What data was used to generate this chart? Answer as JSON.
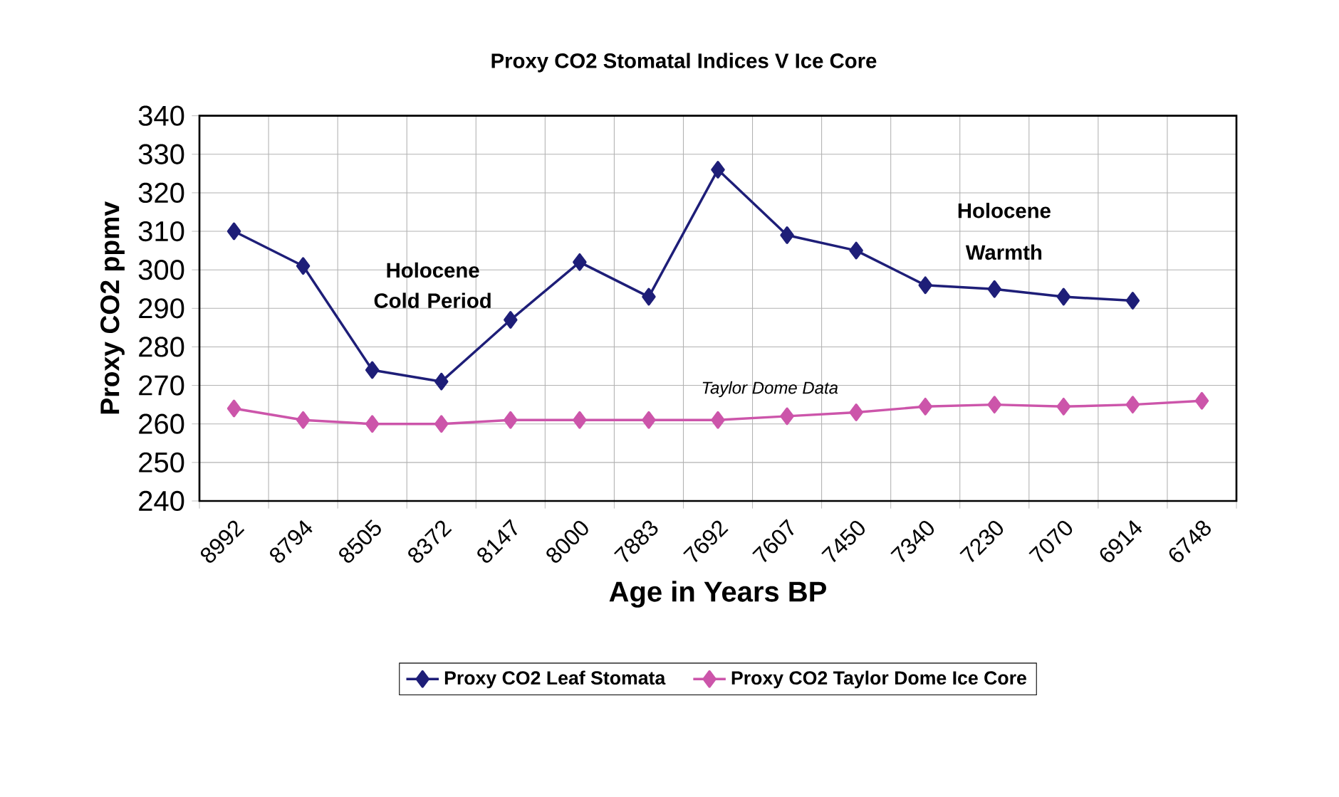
{
  "chart_data": {
    "type": "line",
    "title": "Proxy CO2 Stomatal Indices V Ice Core",
    "xlabel": "Age in Years BP",
    "ylabel": "Proxy CO2 ppmv",
    "categories": [
      "8992",
      "8794",
      "8505",
      "8372",
      "8147",
      "8000",
      "7883",
      "7692",
      "7607",
      "7450",
      "7340",
      "7230",
      "7070",
      "6914",
      "6748"
    ],
    "series": [
      {
        "name": "Proxy CO2 Leaf Stomata",
        "color": "#1e1e78",
        "values": [
          310,
          301,
          274,
          271,
          287,
          302,
          293,
          326,
          309,
          305,
          296,
          295,
          293,
          292,
          null
        ]
      },
      {
        "name": "Proxy CO2 Taylor Dome Ice Core",
        "color": "#cc55aa",
        "values": [
          264,
          261,
          260,
          260,
          261,
          261,
          261,
          261,
          262,
          263,
          264.5,
          265,
          264.5,
          265,
          266
        ]
      }
    ],
    "ylim": [
      240,
      340
    ],
    "yticks": [
      240,
      250,
      260,
      270,
      280,
      290,
      300,
      310,
      320,
      330,
      340
    ],
    "grid": true,
    "legend": "bottom",
    "marker": "diamond",
    "line_style": "solid",
    "annotations": [
      "Holocene Cold Period",
      "Holocene Warmth",
      "Taylor Dome Data"
    ]
  }
}
